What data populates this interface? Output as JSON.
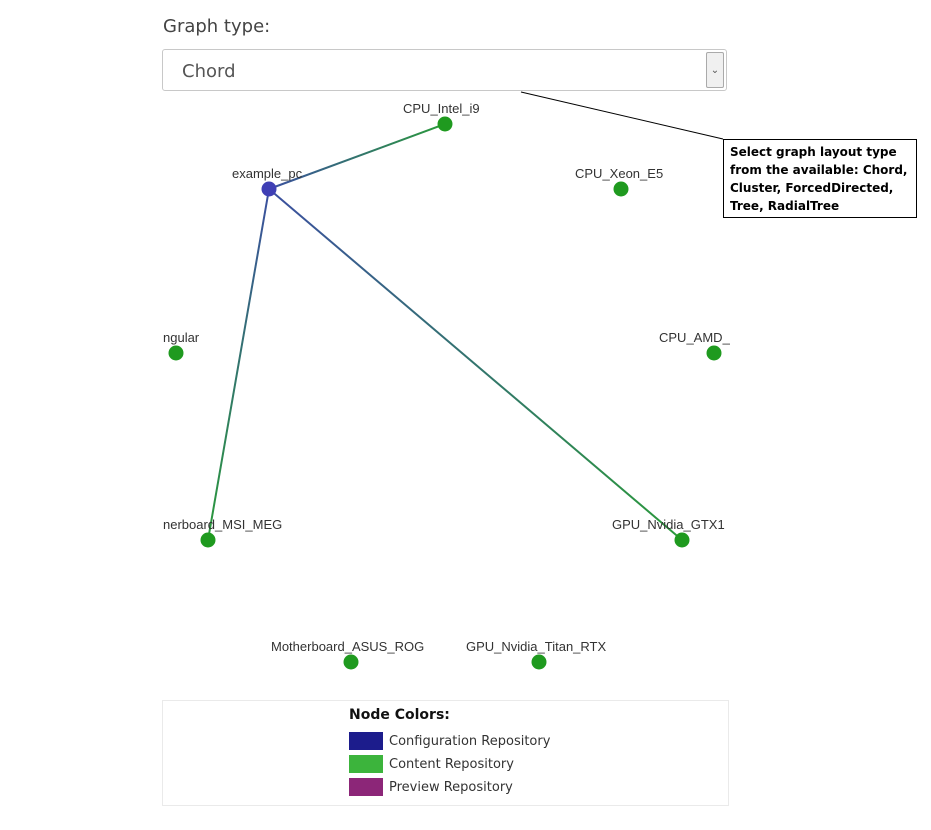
{
  "graph_type_label": "Graph type:",
  "select": {
    "value": "Chord",
    "options": [
      "Chord"
    ]
  },
  "tooltip": "Select graph layout type from the available: Chord, Cluster, ForcedDirected, Tree, RadialTree",
  "nodes": [
    {
      "id": "cpu_intel",
      "label": "CPU_Intel_i9",
      "type": "content"
    },
    {
      "id": "example_pc",
      "label": "example_pc",
      "type": "configuration"
    },
    {
      "id": "cpu_xeon",
      "label": "CPU_Xeon_E5",
      "type": "content"
    },
    {
      "id": "angular",
      "label": "ngular",
      "type": "content"
    },
    {
      "id": "cpu_amd",
      "label": "CPU_AMD_",
      "type": "content"
    },
    {
      "id": "mb_msi",
      "label": "nerboard_MSI_MEG",
      "type": "content"
    },
    {
      "id": "gpu_gtx",
      "label": "GPU_Nvidia_GTX1",
      "type": "content"
    },
    {
      "id": "mb_asus",
      "label": "Motherboard_ASUS_ROG",
      "type": "content"
    },
    {
      "id": "gpu_titan",
      "label": "GPU_Nvidia_Titan_RTX",
      "type": "content"
    }
  ],
  "edges": [
    {
      "source": "example_pc",
      "target": "cpu_intel"
    },
    {
      "source": "example_pc",
      "target": "mb_msi"
    },
    {
      "source": "example_pc",
      "target": "gpu_gtx"
    }
  ],
  "colors": {
    "configuration": "#3f3fb5",
    "content": "#1f9a1f",
    "edge_source": "#3b4fa0",
    "edge_target": "#2a9a3a"
  },
  "legend": {
    "title": "Node Colors:",
    "items": [
      {
        "label": "Configuration Repository",
        "color": "#1c1c8c"
      },
      {
        "label": "Content Repository",
        "color": "#3cb43c"
      },
      {
        "label": "Preview Repository",
        "color": "#8c2678"
      }
    ]
  }
}
